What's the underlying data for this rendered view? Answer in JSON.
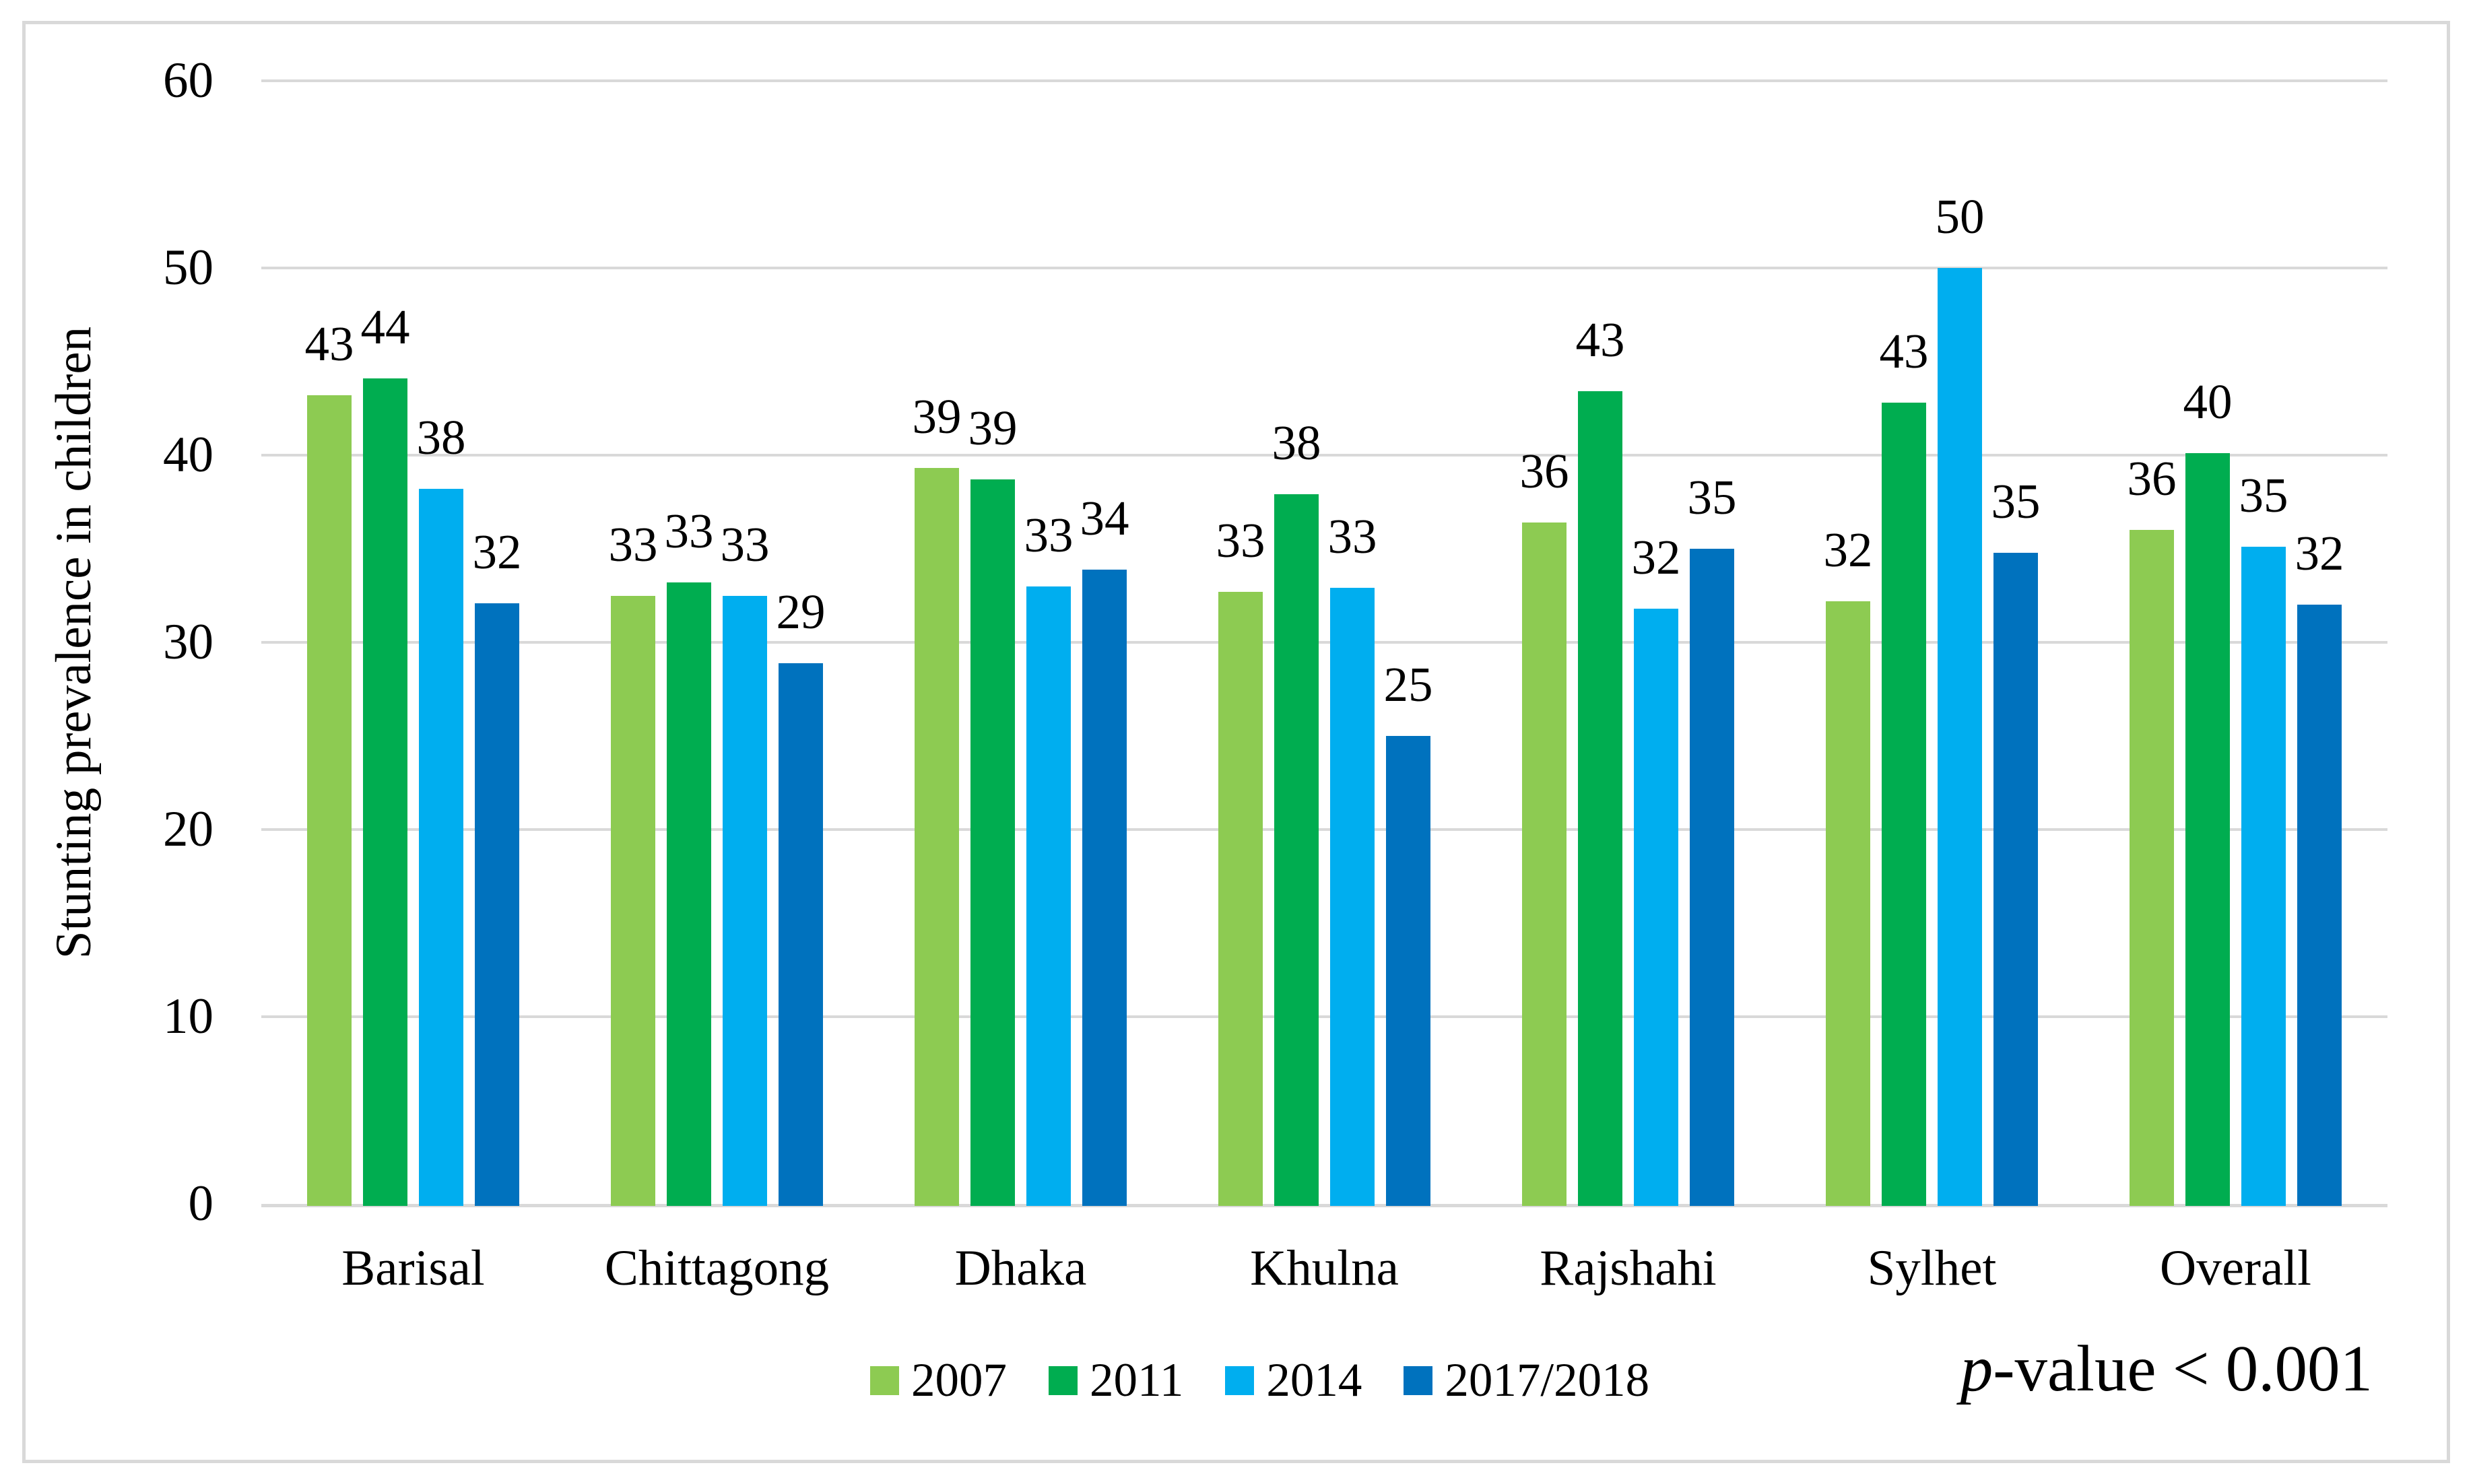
{
  "figure": {
    "background": "#FFFFFF",
    "frame_border_color": "#D9D9D9",
    "gridline_color": "#D9D9D9",
    "text_color": "#000000"
  },
  "chart_data": {
    "type": "bar",
    "title": "",
    "xlabel": "",
    "ylabel": "Stunting prevalence in children",
    "categories": [
      "Barisal",
      "Chittagong",
      "Dhaka",
      "Khulna",
      "Rajshahi",
      "Sylhet",
      "Overall"
    ],
    "series": [
      {
        "name": "2007",
        "color": "#8DCB52",
        "labels": [
          43,
          33,
          39,
          33,
          36,
          32,
          36
        ],
        "values": [
          43.2,
          32.5,
          39.3,
          32.7,
          36.4,
          32.2,
          36.0
        ]
      },
      {
        "name": "2011",
        "color": "#00AD50",
        "labels": [
          44,
          33,
          39,
          38,
          43,
          43,
          40
        ],
        "values": [
          44.1,
          33.2,
          38.7,
          37.9,
          43.4,
          42.8,
          40.1
        ]
      },
      {
        "name": "2014",
        "color": "#00AEEF",
        "labels": [
          38,
          33,
          33,
          33,
          32,
          50,
          35
        ],
        "values": [
          38.2,
          32.5,
          33.0,
          32.9,
          31.8,
          50.0,
          35.1
        ]
      },
      {
        "name": "2017/2018",
        "color": "#0072BE",
        "labels": [
          32,
          29,
          34,
          25,
          35,
          35,
          32
        ],
        "values": [
          32.1,
          28.9,
          33.9,
          25.0,
          35.0,
          34.8,
          32.0
        ]
      }
    ],
    "ylim": [
      0,
      60
    ],
    "yticks": [
      0,
      10,
      20,
      30,
      40,
      50,
      60
    ],
    "grid": "horizontal",
    "bar_value_labels": "outside-end",
    "legend_position": "bottom",
    "annotation": {
      "italic": "p",
      "text": "-value < 0.001"
    }
  }
}
